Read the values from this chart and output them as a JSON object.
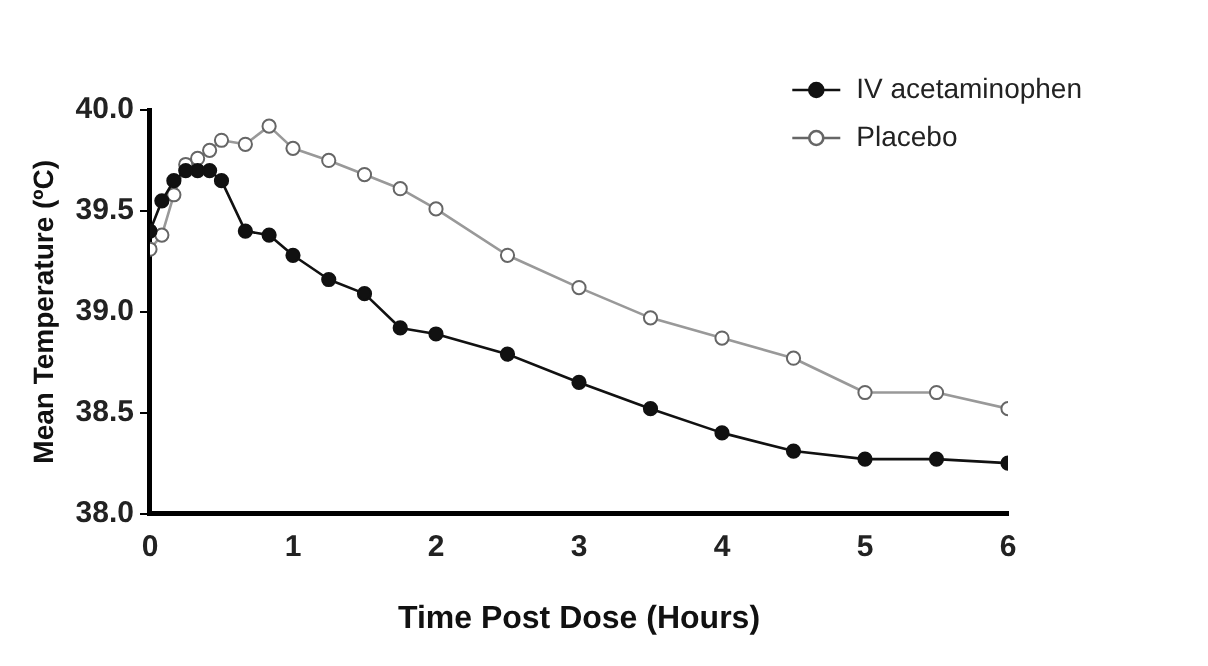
{
  "chart_data": {
    "type": "line",
    "xlabel": "Time Post Dose (Hours)",
    "ylabel": "Mean Temperature (ºC)",
    "x": [
      0,
      0.083,
      0.167,
      0.25,
      0.333,
      0.417,
      0.5,
      0.667,
      0.833,
      1,
      1.25,
      1.5,
      1.75,
      2,
      2.5,
      3,
      3.5,
      4,
      4.5,
      5,
      5.5,
      6
    ],
    "series": [
      {
        "name": "IV acetaminophen",
        "color": "#111111",
        "values": [
          39.4,
          39.55,
          39.65,
          39.7,
          39.7,
          39.7,
          39.65,
          39.4,
          39.38,
          39.28,
          39.16,
          39.09,
          38.92,
          38.89,
          38.79,
          38.65,
          38.52,
          38.4,
          38.31,
          38.27,
          38.27,
          38.25
        ]
      },
      {
        "name": "Placebo",
        "color": "#999999",
        "values": [
          39.31,
          39.38,
          39.58,
          39.73,
          39.76,
          39.8,
          39.85,
          39.83,
          39.92,
          39.81,
          39.75,
          39.68,
          39.61,
          39.51,
          39.28,
          39.12,
          38.97,
          38.87,
          38.77,
          38.6,
          38.6,
          38.52
        ]
      }
    ],
    "xlim": [
      0,
      6
    ],
    "xticks": [
      0,
      1,
      2,
      3,
      4,
      5,
      6
    ],
    "ylim": [
      38,
      40
    ],
    "yticks": [
      {
        "value": 38,
        "label": "38.0"
      },
      {
        "value": 38.5,
        "label": "38.5"
      },
      {
        "value": 39,
        "label": "39.0"
      },
      {
        "value": 39.5,
        "label": "39.5"
      },
      {
        "value": 40,
        "label": "40.0"
      }
    ],
    "grid": false,
    "legend": "top right",
    "marker": "circle",
    "line_style": "solid"
  }
}
